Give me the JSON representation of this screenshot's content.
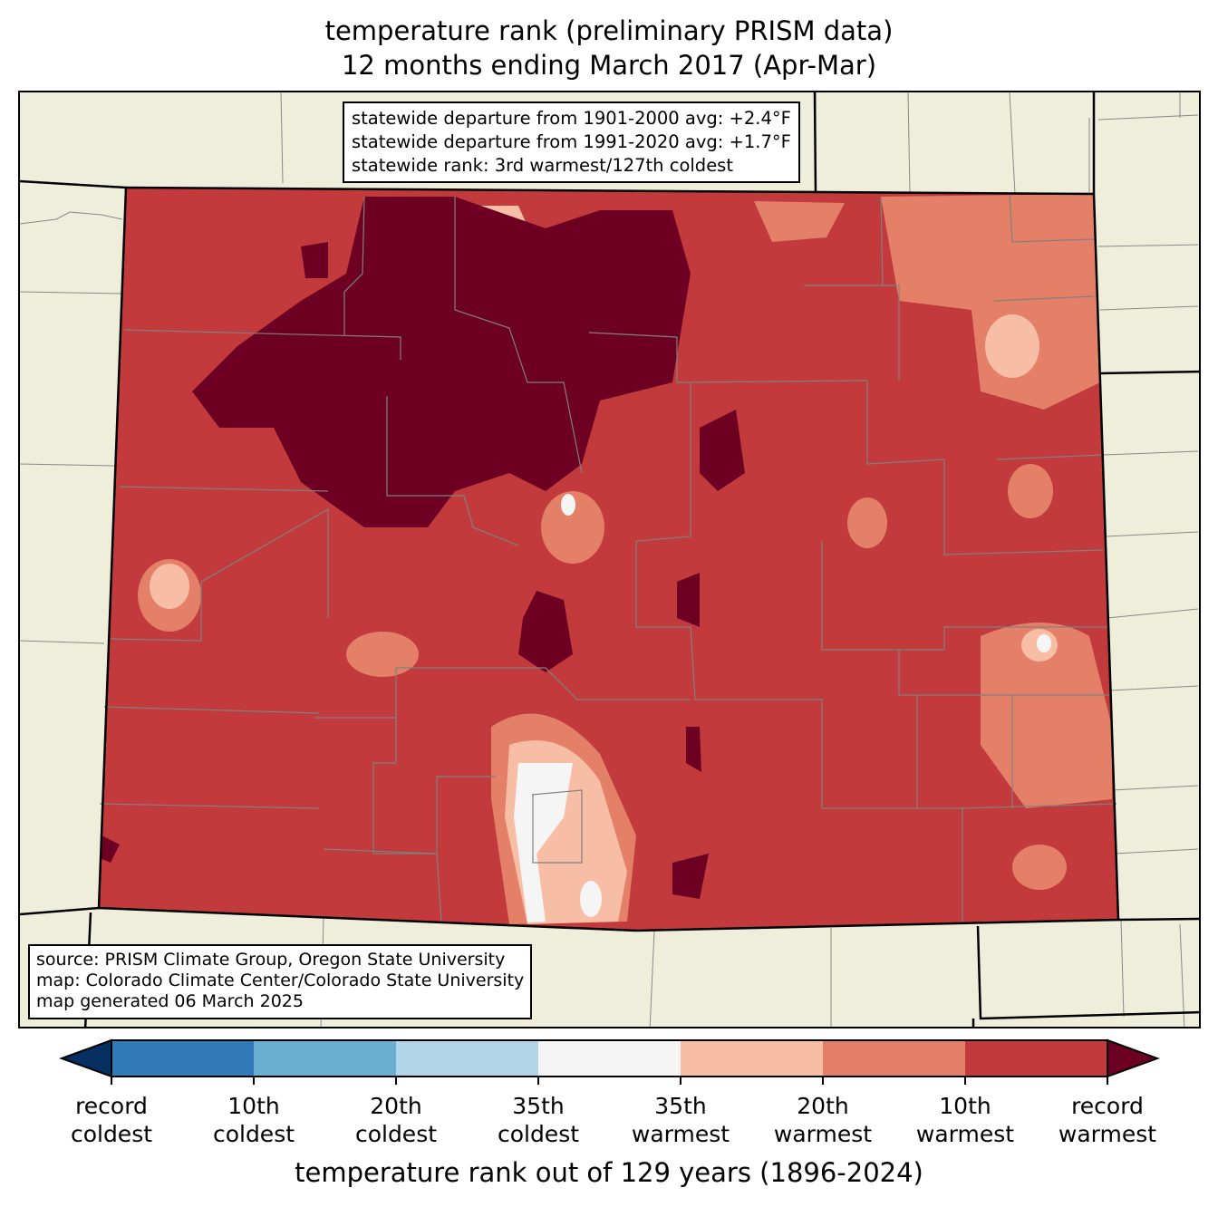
{
  "title": {
    "line1": "temperature rank (preliminary PRISM data)",
    "line2": "12 months ending March 2017 (Apr-Mar)"
  },
  "stats_box": {
    "line1": "statewide departure from 1901-2000 avg: +2.4°F",
    "line2": "statewide departure from 1991-2020 avg: +1.7°F",
    "line3": "statewide rank: 3rd warmest/127th coldest"
  },
  "credits_box": {
    "line1": "source: PRISM Climate Group, Oregon State University",
    "line2": "map: Colorado Climate Center/Colorado State University",
    "line3": "map generated 06 March 2025"
  },
  "colorbar": {
    "label": "temperature rank out of 129 years (1896-2024)",
    "extend_low_color": "#053061",
    "extend_high_color": "#6d0022",
    "bins": [
      {
        "color": "#2f7ab7"
      },
      {
        "color": "#6aaed1"
      },
      {
        "color": "#b2d5e8"
      },
      {
        "color": "#f5f5f5"
      },
      {
        "color": "#f8bea5"
      },
      {
        "color": "#e47f68"
      },
      {
        "color": "#c23a3c"
      }
    ],
    "ticks": [
      {
        "l1": "record",
        "l2": "coldest"
      },
      {
        "l1": "10th",
        "l2": "coldest"
      },
      {
        "l1": "20th",
        "l2": "coldest"
      },
      {
        "l1": "35th",
        "l2": "coldest"
      },
      {
        "l1": "35th",
        "l2": "warmest"
      },
      {
        "l1": "20th",
        "l2": "warmest"
      },
      {
        "l1": "10th",
        "l2": "warmest"
      },
      {
        "l1": "record",
        "l2": "warmest"
      }
    ]
  },
  "map_colors": {
    "background": "#efeedb",
    "dominant": "#c23a3c",
    "record": "#6d0022"
  }
}
